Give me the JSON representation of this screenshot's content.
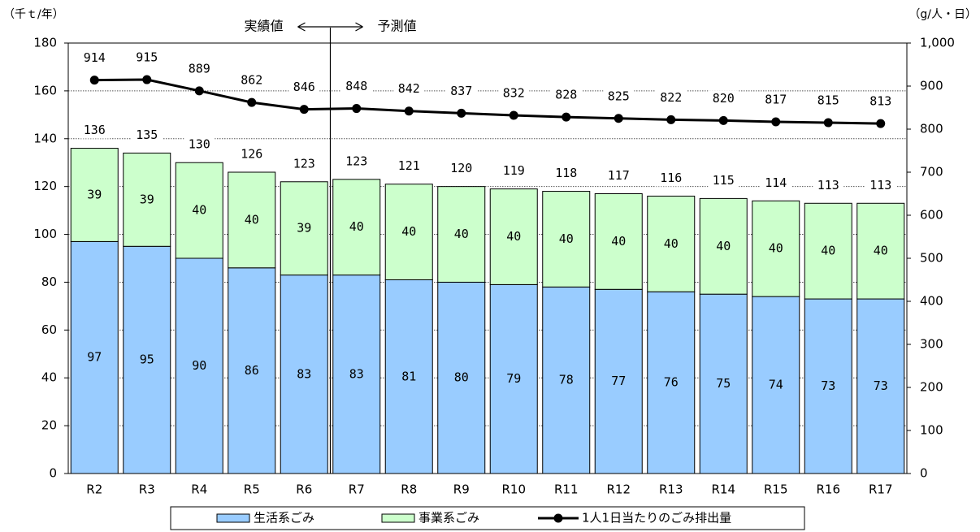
{
  "chart_data": {
    "type": "bar",
    "stacked": true,
    "categories": [
      "R2",
      "R3",
      "R4",
      "R5",
      "R6",
      "R7",
      "R8",
      "R9",
      "R10",
      "R11",
      "R12",
      "R13",
      "R14",
      "R15",
      "R16",
      "R17"
    ],
    "series": [
      {
        "name": "生活系ごみ",
        "type": "bar",
        "axis": "left",
        "color": "#99ccff",
        "values": [
          97,
          95,
          90,
          86,
          83,
          83,
          81,
          80,
          79,
          78,
          77,
          76,
          75,
          74,
          73,
          73
        ]
      },
      {
        "name": "事業系ごみ",
        "type": "bar",
        "axis": "left",
        "color": "#ccffcc",
        "values": [
          39,
          39,
          40,
          40,
          39,
          40,
          40,
          40,
          40,
          40,
          40,
          40,
          40,
          40,
          40,
          40
        ]
      },
      {
        "name": "1人1日当たりのごみ排出量",
        "type": "line",
        "axis": "right",
        "color": "#000000",
        "values": [
          914,
          915,
          889,
          862,
          846,
          848,
          842,
          837,
          832,
          828,
          825,
          822,
          820,
          817,
          815,
          813
        ]
      }
    ],
    "totals": [
      136,
      135,
      130,
      126,
      123,
      123,
      121,
      120,
      119,
      118,
      117,
      116,
      115,
      114,
      113,
      113
    ],
    "totals_display": [
      "136",
      "135",
      "130",
      "126",
      "123",
      "123",
      "121",
      "120",
      "119",
      "118",
      "117",
      "116",
      "115",
      "114",
      "113",
      "113"
    ],
    "line_display": [
      "914",
      "915",
      "889",
      "862",
      "846",
      "848",
      "842",
      "837",
      "832",
      "828",
      "825",
      "822",
      "820",
      "817",
      "815",
      "813"
    ],
    "y_left": {
      "unit": "（千ｔ/年）",
      "min": 0,
      "max": 180,
      "step": 20,
      "tick_labels": [
        "0",
        "20",
        "40",
        "60",
        "80",
        "100",
        "120",
        "140",
        "160",
        "180"
      ]
    },
    "y_right": {
      "unit": "（g/人・日）",
      "min": 0,
      "max": 1000,
      "step": 100,
      "tick_labels": [
        "0",
        "100",
        "200",
        "300",
        "400",
        "500",
        "600",
        "700",
        "800",
        "900",
        "1,000"
      ]
    },
    "divider": {
      "after_category": "R6",
      "left_label": "実績値",
      "right_label": "予測値"
    },
    "grid": true,
    "legend": {
      "placement": "bottom-center"
    }
  }
}
